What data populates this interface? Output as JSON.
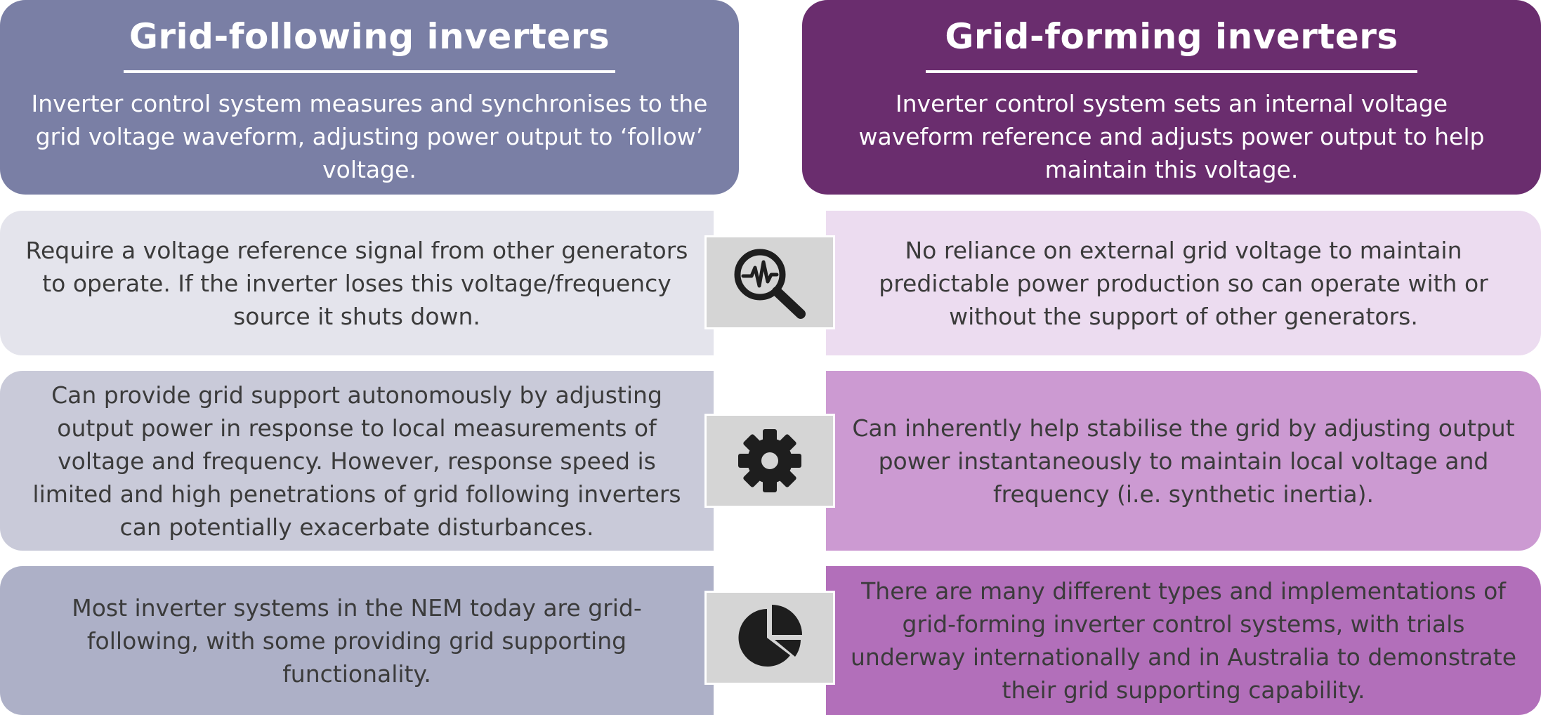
{
  "left_header": {
    "title": "Grid-following inverters",
    "description": "Inverter control system measures and synchronises to the grid voltage waveform, adjusting power output to ‘follow’ voltage."
  },
  "right_header": {
    "title": "Grid-forming inverters",
    "description": "Inverter control system sets an internal voltage waveform reference and adjusts power output to help maintain this voltage."
  },
  "rows": [
    {
      "icon": "magnifier-waveform-icon",
      "left": "Require a voltage reference signal from other generators to operate. If the inverter loses this voltage/frequency source it shuts down.",
      "right": "No reliance on external grid voltage to maintain predictable power production so can operate with or without the support of other generators."
    },
    {
      "icon": "gear-icon",
      "left": "Can provide grid support autonomously by adjusting output power in response to local measurements of voltage and frequency. However, response speed is limited and high penetrations of grid following inverters can potentially exacerbate disturbances.",
      "right": "Can inherently help stabilise the grid by adjusting output power instantaneously to maintain local voltage and frequency (i.e. synthetic inertia)."
    },
    {
      "icon": "pie-chart-icon",
      "left": "Most inverter systems in the NEM today are grid-following, with some providing grid supporting functionality.",
      "right": "There are many different types and implementations of grid-forming inverter control systems, with trials underway internationally and in Australia to demonstrate their grid supporting capability."
    }
  ],
  "colors": {
    "left_header": "#7a7fa5",
    "right_header": "#6a2d6e",
    "left_rows": [
      "#e4e4ec",
      "#c9cad9",
      "#adb0c7"
    ],
    "right_rows": [
      "#ecdcf0",
      "#cc9ad2",
      "#b26fba"
    ],
    "icon_box": "#d5d5d5",
    "icon": "#1e1e1e"
  }
}
